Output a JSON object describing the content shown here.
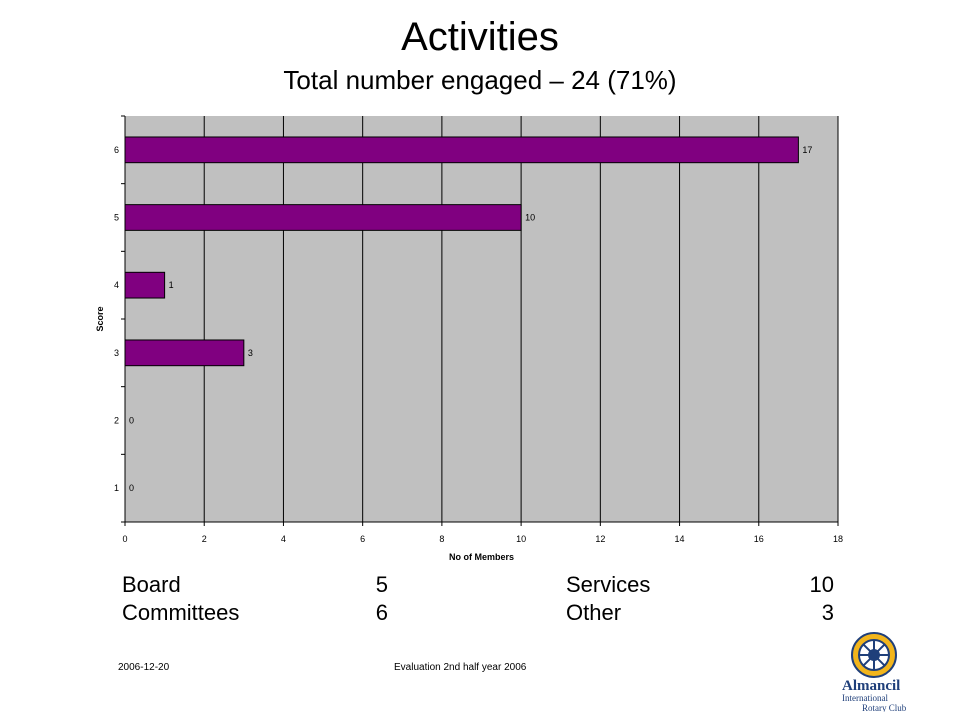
{
  "slide": {
    "title": "Activities",
    "subtitle": "Total number engaged – 24 (71%)"
  },
  "chart_data": {
    "type": "bar",
    "orientation": "horizontal",
    "categories": [
      "1",
      "2",
      "3",
      "4",
      "5",
      "6"
    ],
    "values": [
      0,
      0,
      3,
      1,
      10,
      17
    ],
    "data_labels": [
      "0",
      "0",
      "3",
      "1",
      "10",
      "17"
    ],
    "xlabel": "No of Members",
    "ylabel": "Score",
    "xlim": [
      0,
      18
    ],
    "xticks": [
      0,
      2,
      4,
      6,
      8,
      10,
      12,
      14,
      16,
      18
    ],
    "grid": "vertical",
    "bar_color": "#800080",
    "plot_background": "#c0c0c0"
  },
  "stats": [
    {
      "label": "Board",
      "value": "5"
    },
    {
      "label": "Services",
      "value": "10"
    },
    {
      "label": "Committees",
      "value": "6"
    },
    {
      "label": "Other",
      "value": "3"
    }
  ],
  "footer": {
    "date": "2006-12-20",
    "caption": "Evaluation 2nd half year 2006"
  },
  "logo": {
    "club": "Almancil",
    "line2": "International",
    "line3": "Rotary Club"
  }
}
